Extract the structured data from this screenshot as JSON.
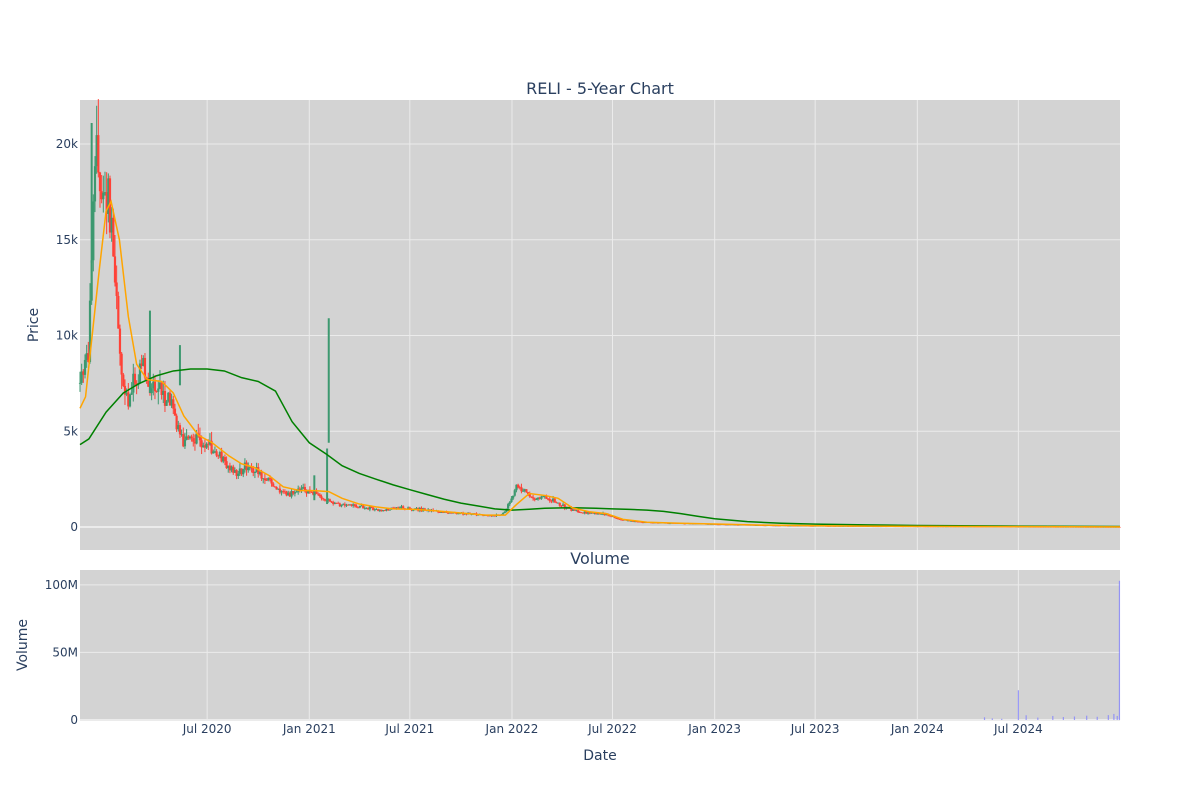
{
  "chart_data": {
    "type": "candlestick",
    "title": "RELI - 5-Year Chart",
    "colors": {
      "plot_bg": "#d3d3d3",
      "grid": "#ebebeb",
      "increasing": "#3d9970",
      "decreasing": "#ff4136",
      "ma_short": "#ffa500",
      "ma_long": "#008000",
      "volume": "#7f7fff",
      "text": "#2a3f5f"
    },
    "x_axis": {
      "label": "Date",
      "range": [
        "2019-11-15",
        "2024-12-31"
      ],
      "ticks": [
        {
          "date": "2020-07-01",
          "label": "Jul 2020"
        },
        {
          "date": "2021-01-01",
          "label": "Jan 2021"
        },
        {
          "date": "2021-07-01",
          "label": "Jul 2021"
        },
        {
          "date": "2022-01-01",
          "label": "Jan 2022"
        },
        {
          "date": "2022-07-01",
          "label": "Jul 2022"
        },
        {
          "date": "2023-01-01",
          "label": "Jan 2023"
        },
        {
          "date": "2023-07-01",
          "label": "Jul 2023"
        },
        {
          "date": "2024-01-01",
          "label": "Jan 2024"
        },
        {
          "date": "2024-07-01",
          "label": "Jul 2024"
        }
      ]
    },
    "price_panel": {
      "ylabel": "Price",
      "ylim": [
        -1200,
        22300
      ],
      "ticks": [
        {
          "value": 0,
          "label": "0"
        },
        {
          "value": 5000,
          "label": "5k"
        },
        {
          "value": 10000,
          "label": "10k"
        },
        {
          "value": 15000,
          "label": "15k"
        },
        {
          "value": 20000,
          "label": "20k"
        }
      ],
      "price_path": [
        [
          "2019-11-15",
          7500
        ],
        [
          "2019-11-22",
          8300
        ],
        [
          "2019-12-01",
          9000
        ],
        [
          "2019-12-08",
          15500
        ],
        [
          "2019-12-13",
          19500
        ],
        [
          "2019-12-20",
          18500
        ],
        [
          "2019-12-28",
          17000
        ],
        [
          "2020-01-05",
          17500
        ],
        [
          "2020-01-12",
          14500
        ],
        [
          "2020-01-20",
          12000
        ],
        [
          "2020-01-28",
          8000
        ],
        [
          "2020-02-05",
          6500
        ],
        [
          "2020-02-15",
          7000
        ],
        [
          "2020-02-25",
          7800
        ],
        [
          "2020-03-10",
          8200
        ],
        [
          "2020-03-25",
          7400
        ],
        [
          "2020-04-10",
          7000
        ],
        [
          "2020-04-25",
          6800
        ],
        [
          "2020-05-05",
          5500
        ],
        [
          "2020-05-20",
          4500
        ],
        [
          "2020-06-10",
          4800
        ],
        [
          "2020-06-25",
          4400
        ],
        [
          "2020-07-10",
          4100
        ],
        [
          "2020-07-25",
          3600
        ],
        [
          "2020-08-10",
          3100
        ],
        [
          "2020-08-25",
          2700
        ],
        [
          "2020-09-10",
          3300
        ],
        [
          "2020-09-25",
          3000
        ],
        [
          "2020-10-10",
          2600
        ],
        [
          "2020-10-25",
          2300
        ],
        [
          "2020-11-10",
          1800
        ],
        [
          "2020-11-25",
          1700
        ],
        [
          "2020-12-10",
          1900
        ],
        [
          "2020-12-25",
          1950
        ],
        [
          "2021-01-10",
          1800
        ],
        [
          "2021-01-25",
          1500
        ],
        [
          "2021-02-10",
          1250
        ],
        [
          "2021-02-25",
          1150
        ],
        [
          "2021-03-10",
          1200
        ],
        [
          "2021-03-25",
          1100
        ],
        [
          "2021-04-10",
          1000
        ],
        [
          "2021-04-25",
          950
        ],
        [
          "2021-05-10",
          850
        ],
        [
          "2021-06-01",
          950
        ],
        [
          "2021-06-20",
          1000
        ],
        [
          "2021-07-10",
          950
        ],
        [
          "2021-08-01",
          850
        ],
        [
          "2021-08-25",
          800
        ],
        [
          "2021-09-15",
          750
        ],
        [
          "2021-10-10",
          700
        ],
        [
          "2021-11-01",
          650
        ],
        [
          "2021-11-25",
          600
        ],
        [
          "2021-12-15",
          650
        ],
        [
          "2022-01-01",
          1500
        ],
        [
          "2022-01-10",
          2200
        ],
        [
          "2022-01-20",
          2000
        ],
        [
          "2022-02-01",
          1600
        ],
        [
          "2022-02-15",
          1500
        ],
        [
          "2022-03-01",
          1550
        ],
        [
          "2022-03-15",
          1450
        ],
        [
          "2022-04-01",
          1100
        ],
        [
          "2022-04-20",
          900
        ],
        [
          "2022-05-10",
          750
        ],
        [
          "2022-06-01",
          700
        ],
        [
          "2022-06-20",
          650
        ],
        [
          "2022-07-15",
          400
        ],
        [
          "2022-08-10",
          280
        ],
        [
          "2022-09-10",
          230
        ],
        [
          "2022-10-15",
          200
        ],
        [
          "2022-11-20",
          180
        ],
        [
          "2023-01-01",
          150
        ],
        [
          "2023-02-15",
          120
        ],
        [
          "2023-04-01",
          90
        ],
        [
          "2023-06-01",
          70
        ],
        [
          "2023-08-01",
          55
        ],
        [
          "2023-11-01",
          40
        ],
        [
          "2024-02-01",
          30
        ],
        [
          "2024-05-01",
          20
        ],
        [
          "2024-08-01",
          12
        ],
        [
          "2024-10-15",
          8
        ],
        [
          "2024-12-31",
          5
        ]
      ],
      "spikes": [
        {
          "date": "2019-12-06",
          "high": 21100,
          "low": 13800
        },
        {
          "date": "2020-03-20",
          "high": 11300,
          "low": 7000
        },
        {
          "date": "2020-05-13",
          "high": 9500,
          "low": 7400
        },
        {
          "date": "2021-01-10",
          "high": 2700,
          "low": 1400
        },
        {
          "date": "2021-02-05",
          "high": 10900,
          "low": 4400
        },
        {
          "date": "2021-02-02",
          "high": 4100,
          "low": 1200
        }
      ],
      "ma_short": [
        [
          "2019-11-15",
          6200
        ],
        [
          "2019-11-25",
          6800
        ],
        [
          "2019-12-05",
          9500
        ],
        [
          "2019-12-20",
          13500
        ],
        [
          "2020-01-01",
          16500
        ],
        [
          "2020-01-10",
          17000
        ],
        [
          "2020-01-25",
          15000
        ],
        [
          "2020-02-10",
          11000
        ],
        [
          "2020-02-25",
          8500
        ],
        [
          "2020-03-15",
          7700
        ],
        [
          "2020-04-10",
          7600
        ],
        [
          "2020-05-01",
          7000
        ],
        [
          "2020-05-20",
          5800
        ],
        [
          "2020-06-15",
          4800
        ],
        [
          "2020-07-10",
          4400
        ],
        [
          "2020-08-10",
          3700
        ],
        [
          "2020-09-01",
          3300
        ],
        [
          "2020-09-25",
          3100
        ],
        [
          "2020-10-20",
          2700
        ],
        [
          "2020-11-15",
          2100
        ],
        [
          "2020-12-15",
          1900
        ],
        [
          "2021-01-10",
          1900
        ],
        [
          "2021-02-05",
          1850
        ],
        [
          "2021-03-01",
          1500
        ],
        [
          "2021-04-01",
          1200
        ],
        [
          "2021-05-01",
          1050
        ],
        [
          "2021-06-01",
          950
        ],
        [
          "2021-07-10",
          920
        ],
        [
          "2021-08-15",
          850
        ],
        [
          "2021-10-01",
          730
        ],
        [
          "2021-11-15",
          620
        ],
        [
          "2021-12-20",
          620
        ],
        [
          "2022-01-10",
          1200
        ],
        [
          "2022-02-01",
          1750
        ],
        [
          "2022-03-01",
          1650
        ],
        [
          "2022-03-25",
          1500
        ],
        [
          "2022-04-20",
          1000
        ],
        [
          "2022-05-20",
          800
        ],
        [
          "2022-06-20",
          700
        ],
        [
          "2022-07-20",
          400
        ],
        [
          "2022-09-01",
          250
        ],
        [
          "2022-11-01",
          200
        ],
        [
          "2023-01-01",
          160
        ],
        [
          "2023-04-01",
          100
        ],
        [
          "2023-08-01",
          60
        ],
        [
          "2024-01-01",
          35
        ],
        [
          "2024-06-01",
          20
        ],
        [
          "2024-12-31",
          8
        ]
      ],
      "ma_long": [
        [
          "2019-11-15",
          4300
        ],
        [
          "2019-12-01",
          4600
        ],
        [
          "2020-01-01",
          6000
        ],
        [
          "2020-02-01",
          7000
        ],
        [
          "2020-03-01",
          7500
        ],
        [
          "2020-04-01",
          7900
        ],
        [
          "2020-05-01",
          8150
        ],
        [
          "2020-06-01",
          8250
        ],
        [
          "2020-07-01",
          8250
        ],
        [
          "2020-08-01",
          8150
        ],
        [
          "2020-09-01",
          7800
        ],
        [
          "2020-10-01",
          7600
        ],
        [
          "2020-11-01",
          7100
        ],
        [
          "2020-12-01",
          5500
        ],
        [
          "2021-01-01",
          4400
        ],
        [
          "2021-02-01",
          3800
        ],
        [
          "2021-03-01",
          3200
        ],
        [
          "2021-04-01",
          2800
        ],
        [
          "2021-05-01",
          2500
        ],
        [
          "2021-06-01",
          2200
        ],
        [
          "2021-07-01",
          1950
        ],
        [
          "2021-08-01",
          1700
        ],
        [
          "2021-09-01",
          1450
        ],
        [
          "2021-10-01",
          1250
        ],
        [
          "2021-11-01",
          1100
        ],
        [
          "2021-12-01",
          950
        ],
        [
          "2022-01-01",
          880
        ],
        [
          "2022-02-01",
          930
        ],
        [
          "2022-03-01",
          980
        ],
        [
          "2022-04-01",
          1000
        ],
        [
          "2022-05-01",
          1000
        ],
        [
          "2022-06-01",
          980
        ],
        [
          "2022-07-01",
          950
        ],
        [
          "2022-08-01",
          920
        ],
        [
          "2022-09-01",
          880
        ],
        [
          "2022-10-01",
          820
        ],
        [
          "2022-11-01",
          700
        ],
        [
          "2022-12-01",
          560
        ],
        [
          "2023-01-01",
          430
        ],
        [
          "2023-03-01",
          280
        ],
        [
          "2023-05-01",
          200
        ],
        [
          "2023-07-01",
          150
        ],
        [
          "2023-10-01",
          110
        ],
        [
          "2024-01-01",
          80
        ],
        [
          "2024-06-01",
          50
        ],
        [
          "2024-12-31",
          25
        ]
      ]
    },
    "volume_panel": {
      "title": "Volume",
      "ylabel": "Volume",
      "ylim": [
        0,
        111000000
      ],
      "ticks": [
        {
          "value": 0,
          "label": "0"
        },
        {
          "value": 50000000,
          "label": "50M"
        },
        {
          "value": 100000000,
          "label": "100M"
        }
      ],
      "bars": [
        [
          "2024-05-01",
          2000000
        ],
        [
          "2024-05-15",
          1200000
        ],
        [
          "2024-06-01",
          900000
        ],
        [
          "2024-07-01",
          22000000
        ],
        [
          "2024-07-15",
          3500000
        ],
        [
          "2024-08-05",
          1800000
        ],
        [
          "2024-09-01",
          3000000
        ],
        [
          "2024-09-20",
          2200000
        ],
        [
          "2024-10-10",
          2600000
        ],
        [
          "2024-11-01",
          3200000
        ],
        [
          "2024-11-20",
          2400000
        ],
        [
          "2024-12-10",
          3600000
        ],
        [
          "2024-12-20",
          4500000
        ],
        [
          "2024-12-26",
          3000000
        ],
        [
          "2024-12-30",
          103000000
        ]
      ]
    }
  }
}
